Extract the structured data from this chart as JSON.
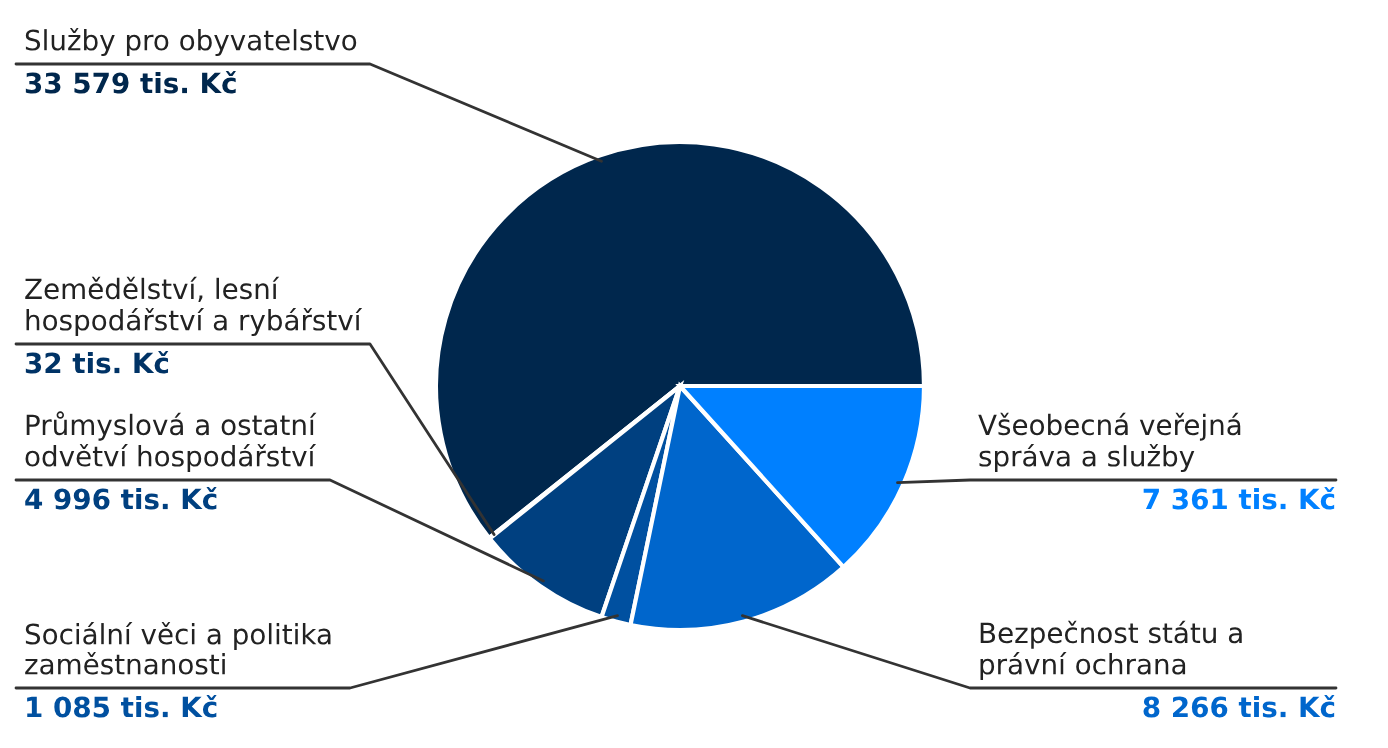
{
  "chart_data": {
    "type": "pie",
    "categories": [
      "Služby pro obyvatelstvo",
      "Zemědělství, lesní hospodářství a rybářství",
      "Průmyslová a ostatní odvětví hospodářství",
      "Sociální věci a politika zaměstnanosti",
      "Bezpečnost státu a právní ochrana",
      "Všeobecná veřejná správa a služby"
    ],
    "values": [
      33579,
      32,
      4996,
      1085,
      8266,
      7361
    ],
    "value_labels": [
      "33 579 tis. Kč",
      "32 tis. Kč",
      "4 996 tis. Kč",
      "1 085 tis. Kč",
      "8 266 tis. Kč",
      "7 361 tis. Kč"
    ],
    "colors": [
      "#00274d",
      "#003366",
      "#004080",
      "#0050a0",
      "#0066cc",
      "#0080ff"
    ]
  }
}
